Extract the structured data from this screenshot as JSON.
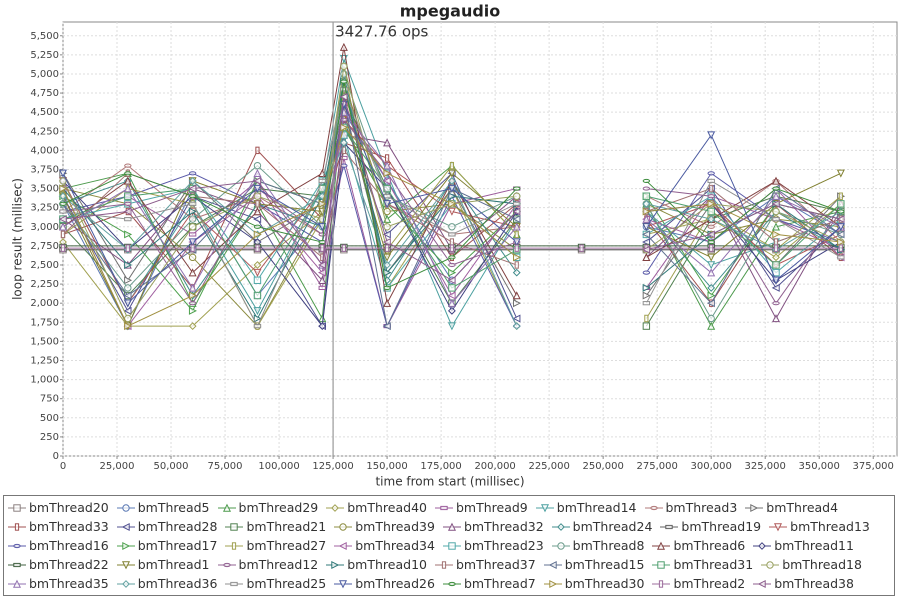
{
  "chart_data": {
    "type": "line",
    "title": "mpegaudio",
    "x_label": "time from start (millisec)",
    "y_label": "loop result (millisec)",
    "annotation": {
      "x": 125000,
      "text": "3427.76 ops"
    },
    "xlim": [
      0,
      386000
    ],
    "ylim": [
      0,
      5680
    ],
    "grid": true,
    "xticks": [
      0,
      {
        "value": 25000,
        "label": "25,000"
      },
      {
        "value": 50000,
        "label": "50,000"
      },
      {
        "value": 75000,
        "label": "75,000"
      },
      {
        "value": 100000,
        "label": "100,000"
      },
      {
        "value": 125000,
        "label": "125,000"
      },
      {
        "value": 150000,
        "label": "150,000"
      },
      {
        "value": 175000,
        "label": "175,000"
      },
      {
        "value": 200000,
        "label": "200,000"
      },
      {
        "value": 225000,
        "label": "225,000"
      },
      {
        "value": 250000,
        "label": "250,000"
      },
      {
        "value": 275000,
        "label": "275,000"
      },
      {
        "value": 300000,
        "label": "300,000"
      },
      {
        "value": 325000,
        "label": "325,000"
      },
      {
        "value": 350000,
        "label": "350,000"
      },
      {
        "value": 375000,
        "label": "375,000"
      }
    ],
    "yticks": [
      0,
      250,
      500,
      750,
      {
        "value": 1000,
        "label": "1,000"
      },
      {
        "value": 1250,
        "label": "1,250"
      },
      {
        "value": 1500,
        "label": "1,500"
      },
      {
        "value": 1750,
        "label": "1,750"
      },
      {
        "value": 2000,
        "label": "2,000"
      },
      {
        "value": 2250,
        "label": "2,250"
      },
      {
        "value": 2500,
        "label": "2,500"
      },
      {
        "value": 2750,
        "label": "2,750"
      },
      {
        "value": 3000,
        "label": "3,000"
      },
      {
        "value": 3250,
        "label": "3,250"
      },
      {
        "value": 3500,
        "label": "3,500"
      },
      {
        "value": 3750,
        "label": "3,750"
      },
      {
        "value": 4000,
        "label": "4,000"
      },
      {
        "value": 4250,
        "label": "4,250"
      },
      {
        "value": 4500,
        "label": "4,500"
      },
      {
        "value": 4750,
        "label": "4,750"
      },
      {
        "value": 5000,
        "label": "5,000"
      },
      {
        "value": 5250,
        "label": "5,250"
      },
      {
        "value": 5500,
        "label": "5,500"
      }
    ],
    "x": [
      0,
      30000,
      60000,
      90000,
      120000,
      130000,
      150000,
      180000,
      210000,
      240000,
      270000,
      300000,
      330000,
      360000
    ],
    "series": [
      {
        "name": "bmThread20",
        "color": "#8c8080",
        "values": [
          2700,
          2700,
          2700,
          2700,
          2700,
          2700,
          2700,
          2700,
          2700,
          2700,
          2700,
          2700,
          2700,
          2700
        ]
      },
      {
        "name": "bmThread5",
        "color": "#5a78b4",
        "values": [
          3300,
          1700,
          3500,
          2100,
          3100,
          4500,
          3600,
          2300,
          3200,
          null,
          3000,
          2800,
          3400,
          2900
        ]
      },
      {
        "name": "bmThread29",
        "color": "#4c9a4c",
        "values": [
          3500,
          3700,
          2000,
          3300,
          1800,
          4800,
          3100,
          3800,
          2900,
          null,
          3300,
          1700,
          3000,
          3200
        ]
      },
      {
        "name": "bmThread40",
        "color": "#a0a050",
        "values": [
          2800,
          1700,
          1700,
          2500,
          3200,
          5100,
          2200,
          3500,
          1700,
          null,
          2900,
          3100,
          2600,
          3300
        ]
      },
      {
        "name": "bmThread9",
        "color": "#9c5c9c",
        "values": [
          3100,
          3400,
          2900,
          3600,
          2200,
          3900,
          1700,
          3300,
          3500,
          null,
          2200,
          3400,
          3100,
          2700
        ]
      },
      {
        "name": "bmThread14",
        "color": "#4ca0a0",
        "values": [
          3600,
          2000,
          3300,
          1900,
          3500,
          5200,
          3700,
          1700,
          3100,
          null,
          3200,
          2500,
          2800,
          3100
        ]
      },
      {
        "name": "bmThread3",
        "color": "#b07878",
        "values": [
          3200,
          3800,
          3100,
          3400,
          2900,
          4300,
          3300,
          2900,
          3000,
          null,
          3400,
          3000,
          3600,
          2800
        ]
      },
      {
        "name": "bmThread4",
        "color": "#707070",
        "values": [
          3700,
          2300,
          3600,
          2800,
          3300,
          4600,
          2400,
          3500,
          2000,
          null,
          2100,
          3300,
          2500,
          3400
        ]
      },
      {
        "name": "bmThread33",
        "color": "#a05050",
        "values": [
          2900,
          3200,
          2200,
          4000,
          3100,
          4100,
          3900,
          2600,
          3300,
          null,
          3100,
          2000,
          3300,
          2600
        ]
      },
      {
        "name": "bmThread28",
        "color": "#505090",
        "values": [
          3400,
          1900,
          3400,
          3100,
          1700,
          4400,
          2900,
          3700,
          1800,
          null,
          2800,
          3500,
          2200,
          3000
        ]
      },
      {
        "name": "bmThread21",
        "color": "#508050",
        "values": [
          3000,
          2100,
          3000,
          3500,
          3400,
          4700,
          3500,
          2000,
          3100,
          null,
          1700,
          3100,
          3400,
          3200
        ]
      },
      {
        "name": "bmThread39",
        "color": "#8c8c40",
        "values": [
          3500,
          3300,
          2600,
          1700,
          3200,
          4900,
          3200,
          3300,
          2700,
          null,
          3300,
          2900,
          3100,
          3000
        ]
      },
      {
        "name": "bmThread32",
        "color": "#805080",
        "values": [
          3100,
          2500,
          3500,
          3200,
          2300,
          4200,
          4100,
          2700,
          3400,
          null,
          2600,
          3400,
          1800,
          3300
        ]
      },
      {
        "name": "bmThread24",
        "color": "#408c8c",
        "values": [
          3300,
          3600,
          2100,
          3300,
          3000,
          5000,
          2300,
          3600,
          2400,
          null,
          3200,
          2200,
          3200,
          2700
        ]
      },
      {
        "name": "bmThread19",
        "color": "#606060",
        "values": [
          2700,
          2700,
          2700,
          2700,
          2700,
          2700,
          2700,
          2700,
          2700,
          2700,
          2700,
          2700,
          2700,
          2700
        ]
      },
      {
        "name": "bmThread13",
        "color": "#b05858",
        "values": [
          3600,
          2000,
          3200,
          2400,
          3500,
          4400,
          3800,
          3200,
          3000,
          null,
          3000,
          3300,
          2500,
          2900
        ]
      },
      {
        "name": "bmThread16",
        "color": "#5a5aa8",
        "values": [
          3200,
          3400,
          3700,
          3300,
          2800,
          3800,
          1700,
          3400,
          1700,
          null,
          2400,
          3700,
          3100,
          2800
        ]
      },
      {
        "name": "bmThread17",
        "color": "#4ca04c",
        "values": [
          3400,
          2900,
          1900,
          3600,
          3300,
          4300,
          3300,
          2400,
          3200,
          null,
          3400,
          2100,
          3300,
          3100
        ]
      },
      {
        "name": "bmThread27",
        "color": "#a0a050",
        "values": [
          2900,
          3500,
          3300,
          1700,
          3100,
          4800,
          2700,
          3800,
          2900,
          null,
          1800,
          3200,
          2700,
          3400
        ]
      },
      {
        "name": "bmThread34",
        "color": "#a060a0",
        "values": [
          3500,
          1700,
          2800,
          3400,
          2400,
          4600,
          3600,
          2100,
          3300,
          null,
          3100,
          2800,
          3500,
          2600
        ]
      },
      {
        "name": "bmThread23",
        "color": "#50a8a8",
        "values": [
          3100,
          3300,
          3500,
          2300,
          3600,
          4200,
          2200,
          3300,
          2600,
          null,
          2900,
          3400,
          2400,
          3100
        ]
      },
      {
        "name": "bmThread8",
        "color": "#6c9c8c",
        "values": [
          3300,
          2200,
          3100,
          3800,
          3000,
          5000,
          3400,
          3000,
          3400,
          null,
          3300,
          1800,
          3200,
          2900
        ]
      },
      {
        "name": "bmThread6",
        "color": "#804040",
        "values": [
          3000,
          3600,
          2400,
          3200,
          3700,
          5350,
          2000,
          3600,
          2100,
          null,
          2600,
          3100,
          3600,
          3000
        ]
      },
      {
        "name": "bmThread11",
        "color": "#404080",
        "values": [
          3600,
          2700,
          3400,
          2800,
          1700,
          4100,
          3500,
          1900,
          3200,
          null,
          3200,
          3300,
          2300,
          2800
        ]
      },
      {
        "name": "bmThread22",
        "color": "#406040",
        "values": [
          2750,
          2750,
          2750,
          2750,
          2750,
          2750,
          2750,
          2750,
          2750,
          2750,
          2750,
          2750,
          2750,
          2750
        ]
      },
      {
        "name": "bmThread1",
        "color": "#808030",
        "values": [
          3400,
          1700,
          3600,
          3300,
          3200,
          4500,
          2600,
          3700,
          3000,
          null,
          3000,
          2600,
          3300,
          3700
        ]
      },
      {
        "name": "bmThread12",
        "color": "#906090",
        "values": [
          3200,
          3300,
          2000,
          3500,
          2900,
          4400,
          3700,
          2500,
          2800,
          null,
          3500,
          3400,
          2000,
          3200
        ]
      },
      {
        "name": "bmThread10",
        "color": "#307878",
        "values": [
          3500,
          2500,
          3200,
          1800,
          3400,
          4900,
          2400,
          3400,
          3300,
          null,
          2200,
          2900,
          3300,
          2700
        ]
      },
      {
        "name": "bmThread37",
        "color": "#a07070",
        "values": [
          2900,
          3700,
          3400,
          3300,
          2600,
          4000,
          3300,
          2800,
          2500,
          null,
          3200,
          3500,
          2800,
          3100
        ]
      },
      {
        "name": "bmThread15",
        "color": "#607090",
        "values": [
          3300,
          2100,
          2700,
          3600,
          3300,
          4700,
          1700,
          3500,
          3100,
          null,
          2900,
          2000,
          3500,
          2900
        ]
      },
      {
        "name": "bmThread31",
        "color": "#50a070",
        "values": [
          3100,
          3400,
          3500,
          2100,
          3500,
          4300,
          3500,
          2200,
          2700,
          null,
          3400,
          3200,
          2500,
          3300
        ]
      },
      {
        "name": "bmThread18",
        "color": "#98a060",
        "values": [
          3600,
          1800,
          3000,
          3400,
          3100,
          5100,
          3000,
          3300,
          3400,
          null,
          2700,
          3300,
          3200,
          2800
        ]
      },
      {
        "name": "bmThread35",
        "color": "#9070b0",
        "values": [
          3000,
          3500,
          2200,
          3700,
          2500,
          4500,
          3800,
          2000,
          3000,
          null,
          3100,
          2400,
          3400,
          3000
        ]
      },
      {
        "name": "bmThread36",
        "color": "#60a0a0",
        "values": [
          3400,
          2700,
          3600,
          2900,
          3400,
          4100,
          2500,
          3600,
          1700,
          null,
          3300,
          3100,
          2700,
          3200
        ]
      },
      {
        "name": "bmThread25",
        "color": "#909090",
        "values": [
          3200,
          3100,
          3300,
          1700,
          3600,
          4800,
          3400,
          2900,
          3300,
          null,
          2000,
          3600,
          3100,
          2600
        ]
      },
      {
        "name": "bmThread26",
        "color": "#4a5aa0",
        "values": [
          3700,
          2000,
          2800,
          3500,
          3000,
          4600,
          3300,
          3500,
          2800,
          null,
          3000,
          4200,
          2300,
          3000
        ]
      },
      {
        "name": "bmThread7",
        "color": "#3c8c3c",
        "values": [
          3300,
          3700,
          3400,
          3000,
          2800,
          4900,
          2200,
          2600,
          3500,
          null,
          3600,
          2800,
          3500,
          3200
        ]
      },
      {
        "name": "bmThread30",
        "color": "#a09040",
        "values": [
          3500,
          1700,
          2100,
          2900,
          3300,
          4300,
          3700,
          3300,
          2600,
          null,
          3200,
          3300,
          2900,
          2800
        ]
      },
      {
        "name": "bmThread2",
        "color": "#9c6c9c",
        "values": [
          2720,
          2720,
          2720,
          2720,
          2720,
          2720,
          2720,
          2720,
          2720,
          2720,
          2720,
          2720,
          2720,
          2720
        ]
      },
      {
        "name": "bmThread38",
        "color": "#8c5c8c",
        "values": [
          3100,
          3200,
          3500,
          3600,
          2500,
          4700,
          2800,
          2300,
          3200,
          null,
          2700,
          2900,
          3300,
          3100
        ]
      }
    ]
  }
}
